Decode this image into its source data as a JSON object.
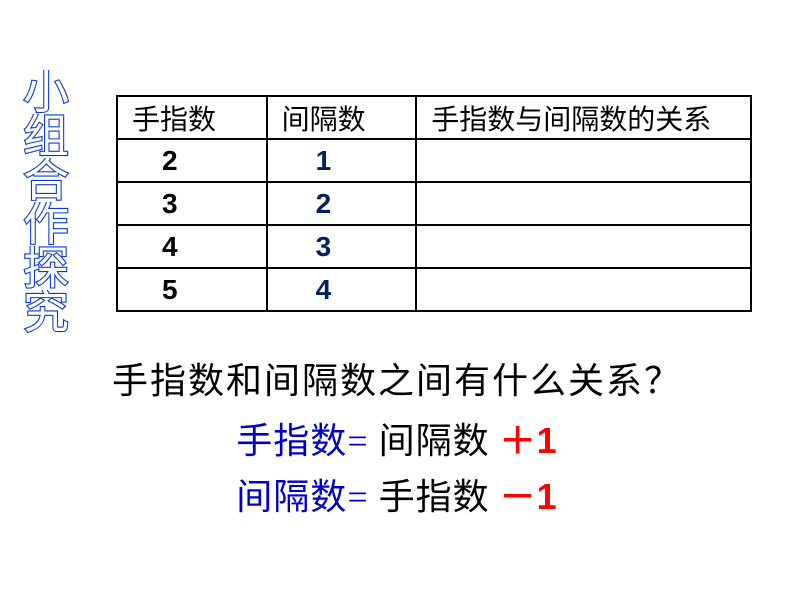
{
  "side_label": {
    "chars": [
      "小",
      "组",
      "合",
      "作",
      "探",
      "究"
    ],
    "outline_color": "#0b3ad6",
    "fill_color": "#ffffff",
    "fontsize": 46
  },
  "table": {
    "headers": [
      "手指数",
      "间隔数",
      "手指数与间隔数的关系"
    ],
    "rows": [
      {
        "fingers": "2",
        "gaps": "1",
        "relation": ""
      },
      {
        "fingers": "3",
        "gaps": "2",
        "relation": ""
      },
      {
        "fingers": "4",
        "gaps": "3",
        "relation": ""
      },
      {
        "fingers": "5",
        "gaps": "4",
        "relation": ""
      }
    ],
    "border_color": "#000000",
    "finger_color": "#000000",
    "gap_color": "#002060",
    "header_fontsize": 28,
    "cell_fontsize": 30
  },
  "question": "手指数和间隔数之间有什么关系？",
  "formula1": {
    "part1": "手指数",
    "eq": "=",
    "part2": " 间隔数 ",
    "op": "＋",
    "part3": "1"
  },
  "formula2": {
    "part1": "间隔数",
    "eq": "=",
    "part2": " 手指数 ",
    "op": "－",
    "part3": "1"
  },
  "colors": {
    "blue": "#0000cc",
    "red": "#ff0000",
    "black": "#000000",
    "dark_blue": "#002060"
  }
}
